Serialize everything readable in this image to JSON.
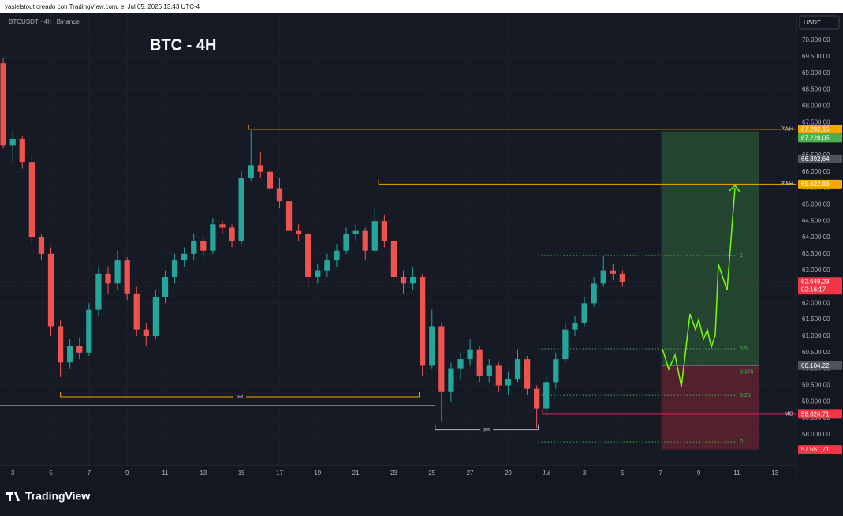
{
  "header": {
    "text": "yasielstout creado con TradingView.com, el Jul 05, 2026 13:43 UTC-4"
  },
  "footer": {
    "brand": "TradingView"
  },
  "chart_data": {
    "type": "candlestick",
    "title": "BTC - 4H",
    "subtitle": "BTCUSDT · 4h · Binance",
    "currency": "USDT",
    "x": [
      2.5,
      3,
      3.5,
      4,
      4.5,
      5,
      5.5,
      6,
      6.5,
      7,
      7.5,
      8,
      8.5,
      9,
      9.5,
      10,
      10.5,
      11,
      11.5,
      12,
      12.5,
      13,
      13.5,
      14,
      14.5,
      15,
      15.5,
      16,
      16.5,
      17,
      17.5,
      18,
      18.5,
      19,
      19.5,
      20,
      20.5,
      21,
      21.5,
      22,
      22.5,
      23,
      23.5,
      24,
      24.5,
      25,
      25.5,
      26,
      26.5,
      27,
      27.5,
      28,
      28.5,
      29,
      29.5,
      30,
      30.5,
      31,
      31.5,
      32,
      32.5,
      33,
      33.5,
      34,
      34.5,
      35
    ],
    "open": [
      69300,
      66800,
      67000,
      66300,
      64000,
      63500,
      61300,
      60200,
      60700,
      60500,
      61800,
      62900,
      62600,
      63300,
      62300,
      61200,
      61000,
      62200,
      62800,
      63300,
      63500,
      63900,
      63600,
      64400,
      64300,
      63900,
      65800,
      66200,
      66000,
      65500,
      65100,
      64200,
      64100,
      62800,
      63000,
      63300,
      63600,
      64100,
      64200,
      63600,
      64500,
      63900,
      62800,
      62600,
      62800,
      60100,
      61300,
      59300,
      60000,
      60300,
      60600,
      59800,
      60100,
      59500,
      59700,
      60300,
      59400,
      58800,
      59600,
      60300,
      61200,
      61400,
      62000,
      62600,
      63000,
      62900
    ],
    "high": [
      69450,
      67200,
      67100,
      66500,
      64100,
      63700,
      61500,
      60900,
      60950,
      62000,
      63100,
      63100,
      63600,
      63400,
      62500,
      61400,
      62400,
      63000,
      63500,
      63700,
      64100,
      64000,
      64600,
      64500,
      64400,
      66000,
      67250,
      66600,
      66200,
      65800,
      65300,
      64400,
      64200,
      63200,
      63500,
      63800,
      64300,
      64400,
      64300,
      64900,
      64700,
      64000,
      63000,
      63100,
      62900,
      61800,
      61400,
      60200,
      60500,
      60900,
      60700,
      60300,
      60200,
      59900,
      60600,
      60400,
      59500,
      59800,
      60500,
      61400,
      61600,
      62200,
      62800,
      63420,
      63200,
      63000
    ],
    "low": [
      66700,
      66300,
      66100,
      63800,
      63300,
      61000,
      59750,
      60000,
      60300,
      60400,
      61600,
      62300,
      62400,
      62100,
      61000,
      60700,
      60900,
      62000,
      62600,
      63100,
      63300,
      63400,
      63500,
      64100,
      63700,
      63800,
      65700,
      65800,
      65300,
      64900,
      64000,
      63900,
      62500,
      62600,
      62800,
      63100,
      63500,
      63900,
      63300,
      63500,
      63700,
      62600,
      62300,
      62400,
      59800,
      60000,
      58400,
      59000,
      59700,
      60100,
      59600,
      59600,
      59300,
      59200,
      59600,
      59200,
      58200,
      58600,
      59400,
      60200,
      61000,
      61300,
      61900,
      62500,
      62700,
      62500
    ],
    "close": [
      66800,
      67000,
      66300,
      64000,
      63500,
      61300,
      60200,
      60700,
      60500,
      61800,
      62900,
      62600,
      63300,
      62300,
      61200,
      61000,
      62200,
      62800,
      63300,
      63500,
      63900,
      63600,
      64400,
      64300,
      63900,
      65800,
      66200,
      66000,
      65500,
      65100,
      64200,
      64100,
      62800,
      63000,
      63300,
      63600,
      64100,
      64200,
      63600,
      64500,
      63900,
      62800,
      62600,
      62800,
      60100,
      61300,
      59300,
      60000,
      60300,
      60600,
      59800,
      60100,
      59500,
      59700,
      60300,
      59400,
      58800,
      59600,
      60300,
      61200,
      61400,
      62000,
      62600,
      63000,
      62900,
      62649.23
    ],
    "up_color": "#26a69a",
    "down_color": "#ef5350",
    "xlim": [
      2.33,
      44.13
    ],
    "xticks": [
      3,
      5,
      7,
      9,
      11,
      13,
      15,
      17,
      19,
      21,
      23,
      25,
      27,
      29,
      {
        "value": 31,
        "label": "Jul"
      },
      {
        "value": 33,
        "label": "3"
      },
      {
        "value": 35,
        "label": "5"
      },
      {
        "value": 37,
        "label": "7"
      },
      {
        "value": 39,
        "label": "9"
      },
      {
        "value": 41,
        "label": "11"
      },
      {
        "value": 43,
        "label": "13"
      }
    ],
    "ylim": [
      57062,
      70818
    ],
    "yticks": [
      {
        "value": 58000,
        "label": "58.000,00"
      },
      {
        "value": 58500,
        "label": "58.500,00"
      },
      {
        "value": 59000,
        "label": "59.000,00"
      },
      {
        "value": 59500,
        "label": "59.500,00"
      },
      {
        "value": 60000,
        "label": "60.000,00"
      },
      {
        "value": 60500,
        "label": "60.500,00"
      },
      {
        "value": 61000,
        "label": "61.000,00"
      },
      {
        "value": 61500,
        "label": "61.500,00"
      },
      {
        "value": 62000,
        "label": "62.000,00"
      },
      {
        "value": 62500,
        "label": "62.500,00"
      },
      {
        "value": 63000,
        "label": "63.000,00"
      },
      {
        "value": 63500,
        "label": "63.500,00"
      },
      {
        "value": 64000,
        "label": "64.000,00"
      },
      {
        "value": 64500,
        "label": "64.500,00"
      },
      {
        "value": 65000,
        "label": "65.000,00"
      },
      {
        "value": 65500,
        "label": "65.500,00"
      },
      {
        "value": 66000,
        "label": "66.000,00"
      },
      {
        "value": 66500,
        "label": "66.500,00"
      },
      {
        "value": 67000,
        "label": "67.000,00"
      },
      {
        "value": 67500,
        "label": "67.500,00"
      },
      {
        "value": 68000,
        "label": "68.000,00"
      },
      {
        "value": 68500,
        "label": "68.500,00"
      },
      {
        "value": 69000,
        "label": "69.000,00"
      },
      {
        "value": 69500,
        "label": "69.500,00"
      },
      {
        "value": 70000,
        "label": "70.000,00"
      }
    ],
    "grid": true,
    "lines": [
      {
        "label": "PWH",
        "value": 67292.15,
        "start": 15.375,
        "color": "#f7a600"
      },
      {
        "label": "PWH",
        "value": 65622.83,
        "start": 22.2,
        "color": "#f7a600"
      },
      {
        "label": "pwl",
        "value": 59150,
        "start": 5.5,
        "end": 24.33,
        "color": "#f7a600"
      },
      {
        "label": "pwl",
        "value": 58150,
        "start": 25.17,
        "end": 30.58,
        "color": "#b2b5be"
      },
      {
        "value": 58900,
        "end": 25.17,
        "color": "#787b86"
      },
      {
        "label": "MO",
        "value": 58624.71,
        "start": 30.8,
        "color": "#e91e63"
      }
    ],
    "fib": {
      "start": 30.58,
      "end": 41.2,
      "color": "#4caf50",
      "levels": [
        {
          "label": "1",
          "value": 63450
        },
        {
          "label": "0,5",
          "value": 60615
        },
        {
          "label": "0,375",
          "value": 59906
        },
        {
          "label": "0,25",
          "value": 59197
        },
        {
          "label": "0",
          "value": 57780
        }
      ]
    },
    "position": {
      "start": 37.04,
      "end": 42.17,
      "entry": 60104.22,
      "target": 67228.05,
      "stop": 57551.71
    },
    "last_price": {
      "value": 62649.23,
      "label": "62.649,23",
      "countdown": "02:16:17",
      "color": "#f23645"
    },
    "price_labels": [
      {
        "value": 67292.15,
        "label": "67.292,15",
        "color": "#f7a600"
      },
      {
        "value": 67228.05,
        "label": "67.228,05",
        "color": "#4caf50"
      },
      {
        "value": 66392.64,
        "label": "66.392,64",
        "color": "#50535e"
      },
      {
        "value": 65622.83,
        "label": "65.622,83",
        "color": "#f7a600"
      },
      {
        "value": 60104.22,
        "label": "60.104,22",
        "color": "#50535e"
      },
      {
        "value": 58624.71,
        "label": "58.624,71",
        "color": "#f23645"
      },
      {
        "value": 57551.71,
        "label": "57.551,71",
        "color": "#f23645"
      }
    ]
  }
}
